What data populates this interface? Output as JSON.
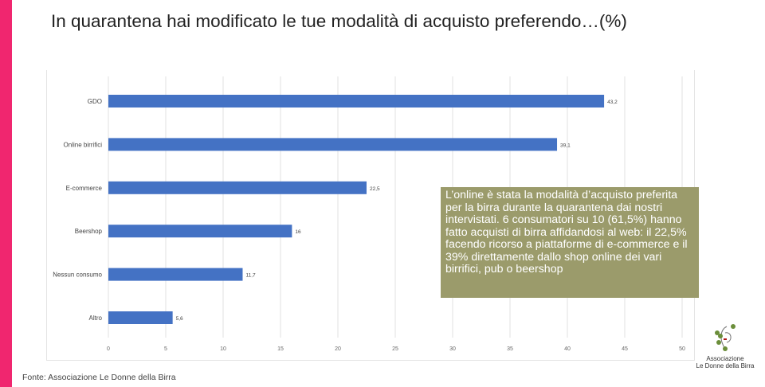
{
  "title": "In quarantena hai modificato le tue modalità di acquisto preferendo…(%)",
  "callout": "L’online è stata la modalità d’acquisto preferita per la birra durante la quarantena dai nostri intervistati. 6 consumatori su 10 (61,5%) hanno fatto acquisti di birra affidandosi al web: il 22,5% facendo ricorso a piattaforme di e-commerce e il 39% direttamente dallo shop online dei vari birrifici, pub o beershop",
  "source": "Fonte: Associazione Le Donne della Birra",
  "logo": {
    "line1": "Associazione",
    "line2": "Le Donne della Birra"
  },
  "colors": {
    "bar": "#4472c4",
    "accent": "#f0266f",
    "callout": "#9b9b6b"
  },
  "chart_data": {
    "type": "bar",
    "orientation": "horizontal",
    "categories": [
      "GDO",
      "Online birrifici",
      "E-commerce",
      "Beershop",
      "Nessun consumo",
      "Altro"
    ],
    "values": [
      43.2,
      39.1,
      22.5,
      16,
      11.7,
      5.6
    ],
    "value_labels": [
      "43,2",
      "39,1",
      "22,5",
      "16",
      "11,7",
      "5,6"
    ],
    "xlim": [
      0,
      50
    ],
    "xticks": [
      0,
      5,
      10,
      15,
      20,
      25,
      30,
      35,
      40,
      45,
      50
    ],
    "grid": true
  }
}
